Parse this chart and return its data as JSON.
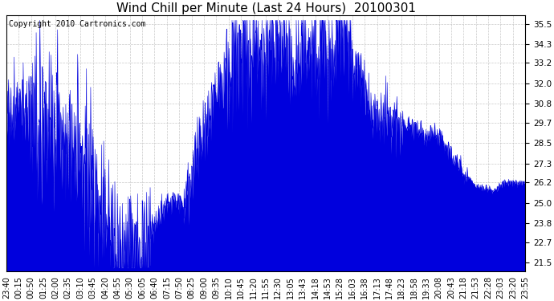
{
  "title": "Wind Chill per Minute (Last 24 Hours)  20100301",
  "copyright_text": "Copyright 2010 Cartronics.com",
  "line_color": "#0000dd",
  "bg_color": "#ffffff",
  "plot_bg_color": "#ffffff",
  "grid_color": "#bbbbbb",
  "yticks": [
    21.5,
    22.7,
    23.8,
    25.0,
    26.2,
    27.3,
    28.5,
    29.7,
    30.8,
    32.0,
    33.2,
    34.3,
    35.5
  ],
  "ylim": [
    21.0,
    36.0
  ],
  "xtick_labels": [
    "23:40",
    "00:15",
    "00:50",
    "01:25",
    "02:00",
    "02:35",
    "03:10",
    "03:45",
    "04:20",
    "04:55",
    "05:30",
    "06:05",
    "06:40",
    "07:15",
    "07:50",
    "08:25",
    "09:00",
    "09:35",
    "10:10",
    "10:45",
    "11:20",
    "11:55",
    "12:30",
    "13:05",
    "13:43",
    "14:18",
    "14:53",
    "15:28",
    "16:03",
    "16:38",
    "17:13",
    "17:48",
    "18:23",
    "18:58",
    "19:33",
    "20:08",
    "20:43",
    "21:18",
    "21:53",
    "22:28",
    "23:03",
    "23:20",
    "23:55"
  ],
  "title_fontsize": 11,
  "tick_fontsize": 7.5,
  "copyright_fontsize": 7
}
